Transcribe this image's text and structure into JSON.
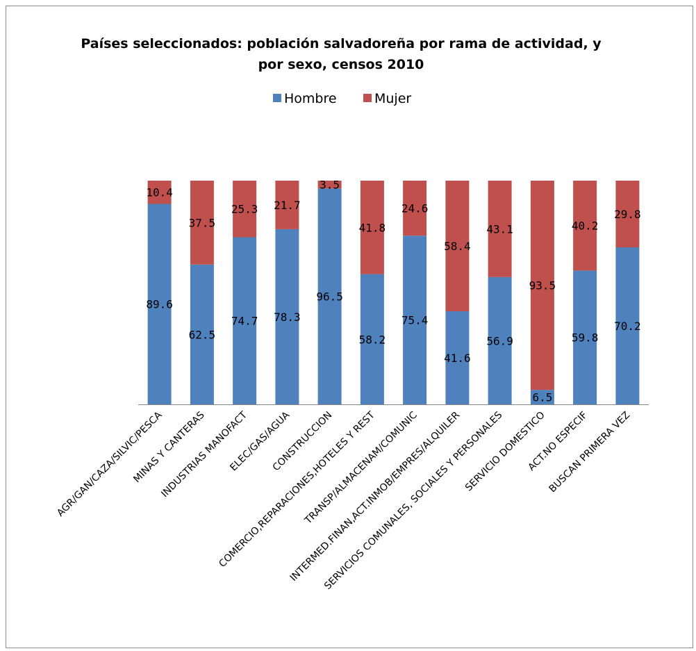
{
  "chart_data": {
    "type": "bar",
    "stacked": true,
    "percent_stacked": true,
    "title_lines": [
      "Países seleccionados: población salvadoreña por rama de actividad, y",
      "por sexo, censos 2010"
    ],
    "categories": [
      "AGR/GAN/CAZA/SILVIC/PESCA",
      "MINAS Y CANTERAS",
      "INDUSTRIAS MANOFACT",
      "ELEC/GAS/AGUA",
      "CONSTRUCCION",
      "COMERCIO,REPARACIONES,HOTELES Y REST",
      "TRANSP/ALMACENAM/COMUNIC",
      "INTERMED.FINAN,ACT.INMOB/EMPRES/ALQUILER",
      "SERVICIOS COMUNALES, SOCIALES Y PERSONALES",
      "SERVICIO DOMESTICO",
      "ACT.NO ESPECIF",
      "BUSCAN PRIMERA VEZ"
    ],
    "series": [
      {
        "name": "Hombre",
        "color": "#4f81bd",
        "values": [
          89.6,
          62.5,
          74.7,
          78.3,
          96.5,
          58.2,
          75.4,
          41.6,
          56.9,
          6.5,
          59.8,
          70.2
        ]
      },
      {
        "name": "Mujer",
        "color": "#c0504d",
        "values": [
          10.4,
          37.5,
          25.3,
          21.7,
          3.5,
          41.8,
          24.6,
          58.4,
          43.1,
          93.5,
          40.2,
          29.8
        ]
      }
    ],
    "ylim": [
      0,
      100
    ],
    "legend_position": "top",
    "grid": false,
    "data_labels": true
  }
}
